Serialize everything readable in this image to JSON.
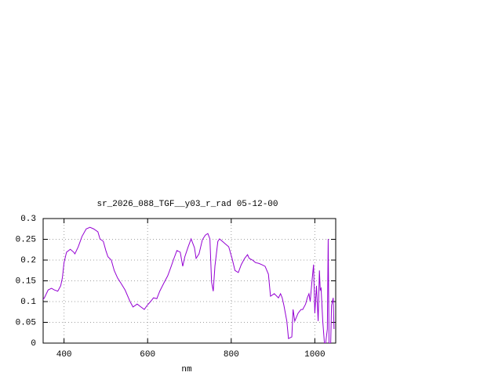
{
  "chart_data": {
    "type": "line",
    "title": "sr_2026_088_TGF__y03_r_rad 05-12-00",
    "x_label": "nm",
    "xlim": [
      350,
      1050
    ],
    "xticks": [
      400,
      600,
      800,
      1000
    ],
    "ylim": [
      0,
      0.3
    ],
    "yticks": [
      0,
      0.05,
      0.1,
      0.15,
      0.2,
      0.25,
      0.3
    ],
    "grid": true,
    "x": [
      349,
      353,
      362,
      370,
      377,
      385,
      392,
      396,
      400,
      406,
      415,
      423,
      426,
      434,
      443,
      453,
      462,
      471,
      481,
      486,
      494,
      500,
      505,
      513,
      520,
      528,
      537,
      546,
      558,
      565,
      575,
      584,
      592,
      599,
      607,
      614,
      622,
      629,
      640,
      648,
      655,
      663,
      670,
      678,
      684,
      689,
      697,
      704,
      712,
      716,
      723,
      731,
      738,
      744,
      749,
      753,
      757,
      761,
      768,
      772,
      779,
      787,
      794,
      802,
      809,
      817,
      824,
      832,
      839,
      843,
      851,
      858,
      866,
      873,
      881,
      889,
      894,
      903,
      913,
      918,
      922,
      926,
      933,
      937,
      945,
      948,
      952,
      960,
      967,
      971,
      978,
      982,
      986,
      989,
      993,
      997,
      1000,
      1004,
      1008,
      1011,
      1013,
      1015,
      1019,
      1023,
      1026,
      1030,
      1032,
      1034,
      1038,
      1040,
      1044,
      1046
    ],
    "series": [
      {
        "color": "#9400d3",
        "values": [
          0.104,
          0.109,
          0.128,
          0.132,
          0.128,
          0.125,
          0.138,
          0.157,
          0.194,
          0.219,
          0.226,
          0.219,
          0.215,
          0.232,
          0.257,
          0.275,
          0.279,
          0.275,
          0.268,
          0.251,
          0.245,
          0.223,
          0.208,
          0.2,
          0.175,
          0.157,
          0.143,
          0.128,
          0.1,
          0.087,
          0.094,
          0.087,
          0.081,
          0.091,
          0.1,
          0.109,
          0.107,
          0.125,
          0.147,
          0.162,
          0.181,
          0.204,
          0.223,
          0.219,
          0.185,
          0.208,
          0.232,
          0.251,
          0.23,
          0.204,
          0.215,
          0.249,
          0.26,
          0.264,
          0.251,
          0.147,
          0.125,
          0.185,
          0.245,
          0.251,
          0.245,
          0.238,
          0.232,
          0.204,
          0.175,
          0.17,
          0.189,
          0.204,
          0.213,
          0.204,
          0.2,
          0.194,
          0.192,
          0.189,
          0.185,
          0.166,
          0.113,
          0.119,
          0.109,
          0.119,
          0.109,
          0.091,
          0.053,
          0.011,
          0.015,
          0.081,
          0.053,
          0.072,
          0.081,
          0.081,
          0.094,
          0.109,
          0.119,
          0.1,
          0.147,
          0.189,
          0.072,
          0.138,
          0.053,
          0.175,
          0.128,
          0.132,
          0.053,
          0,
          0,
          0.034,
          0.251,
          0,
          0,
          0.091,
          0.109,
          0.034
        ]
      }
    ]
  }
}
